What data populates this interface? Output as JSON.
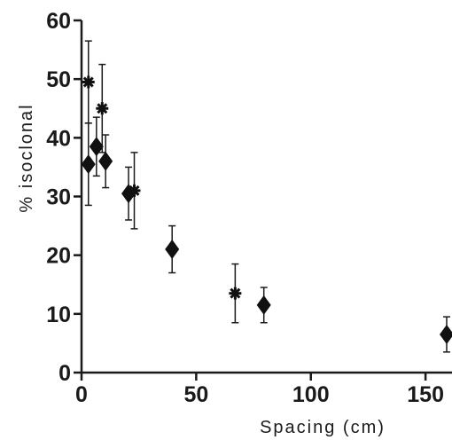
{
  "chart_data": {
    "type": "scatter",
    "xlabel": "Spacing (cm)",
    "ylabel": "% isoclonal",
    "xlim": [
      0,
      160
    ],
    "ylim": [
      0,
      60
    ],
    "xticks": [
      0,
      50,
      100,
      150
    ],
    "yticks": [
      0,
      10,
      20,
      30,
      40,
      50,
      60
    ],
    "grid": false,
    "series": [
      {
        "marker": "diamond",
        "points": [
          {
            "x": 3,
            "y": 35.5,
            "err": 7
          },
          {
            "x": 6.5,
            "y": 38.5,
            "err": 5
          },
          {
            "x": 10.5,
            "y": 36,
            "err": 4.5
          },
          {
            "x": 20.5,
            "y": 30.5,
            "err": 4.5
          },
          {
            "x": 39.5,
            "y": 21,
            "err": 4
          },
          {
            "x": 79.5,
            "y": 11.5,
            "err": 3
          },
          {
            "x": 160,
            "y": 6.5,
            "err": 3
          }
        ]
      },
      {
        "marker": "asterisk",
        "points": [
          {
            "x": 3,
            "y": 49.5,
            "err": 7
          },
          {
            "x": 9,
            "y": 45,
            "err": 7.5
          },
          {
            "x": 23,
            "y": 31,
            "err": 6.5
          },
          {
            "x": 67,
            "y": 13.5,
            "err": 5
          }
        ]
      }
    ]
  }
}
